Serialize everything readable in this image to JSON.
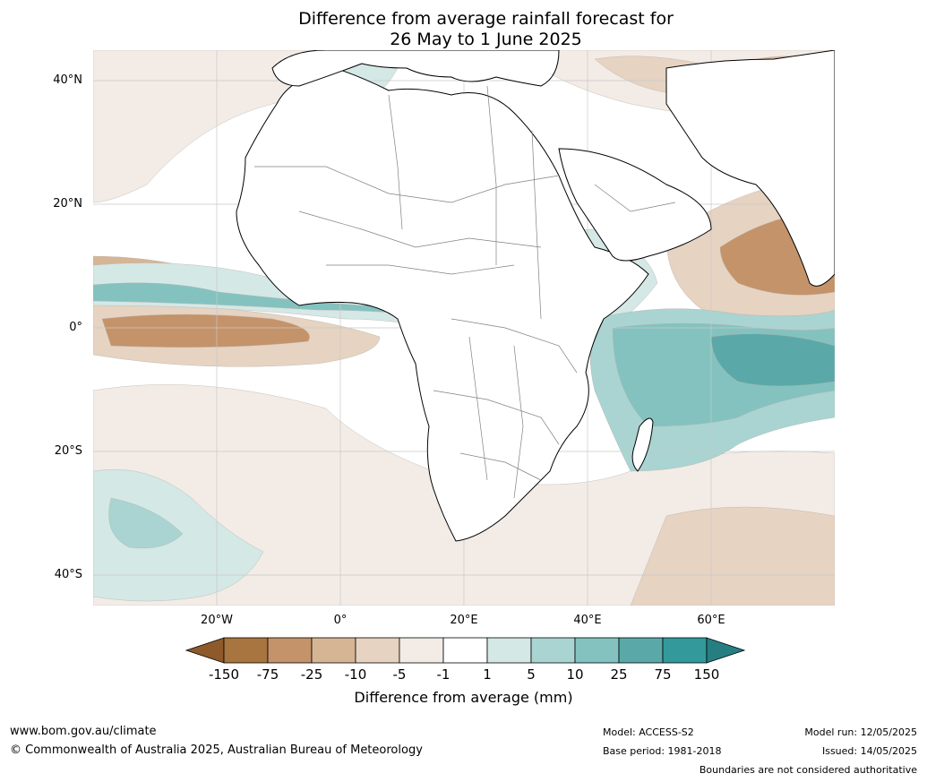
{
  "title_line1": "Difference from average rainfall forecast for",
  "title_line2": "26 May to 1 June 2025",
  "lat_labels": [
    "40°N",
    "20°N",
    "0°",
    "20°S",
    "40°S"
  ],
  "lon_labels": [
    "20°W",
    "0°",
    "20°E",
    "40°E",
    "60°E"
  ],
  "colorbar": {
    "label": "Difference from average (mm)",
    "ticks": [
      "-150",
      "-75",
      "-25",
      "-10",
      "-5",
      "-1",
      "1",
      "5",
      "10",
      "25",
      "75",
      "150"
    ],
    "colors": [
      "#8e5a2a",
      "#a87440",
      "#c4936a",
      "#d6b595",
      "#e6d3c2",
      "#f3ece6",
      "#ffffff",
      "#d4e8e6",
      "#a9d4d2",
      "#84c2c0",
      "#5aa9a8",
      "#33999a",
      "#257f82"
    ]
  },
  "footer": {
    "website": "www.bom.gov.au/climate",
    "copyright": "© Commonwealth of Australia 2025, Australian Bureau of Meteorology",
    "model": "Model: ACCESS-S2",
    "base_period": "Base period: 1981-2018",
    "model_run": "Model run: 12/05/2025",
    "issued": "Issued: 14/05/2025",
    "disclaimer": "Boundaries are not considered authoritative"
  }
}
